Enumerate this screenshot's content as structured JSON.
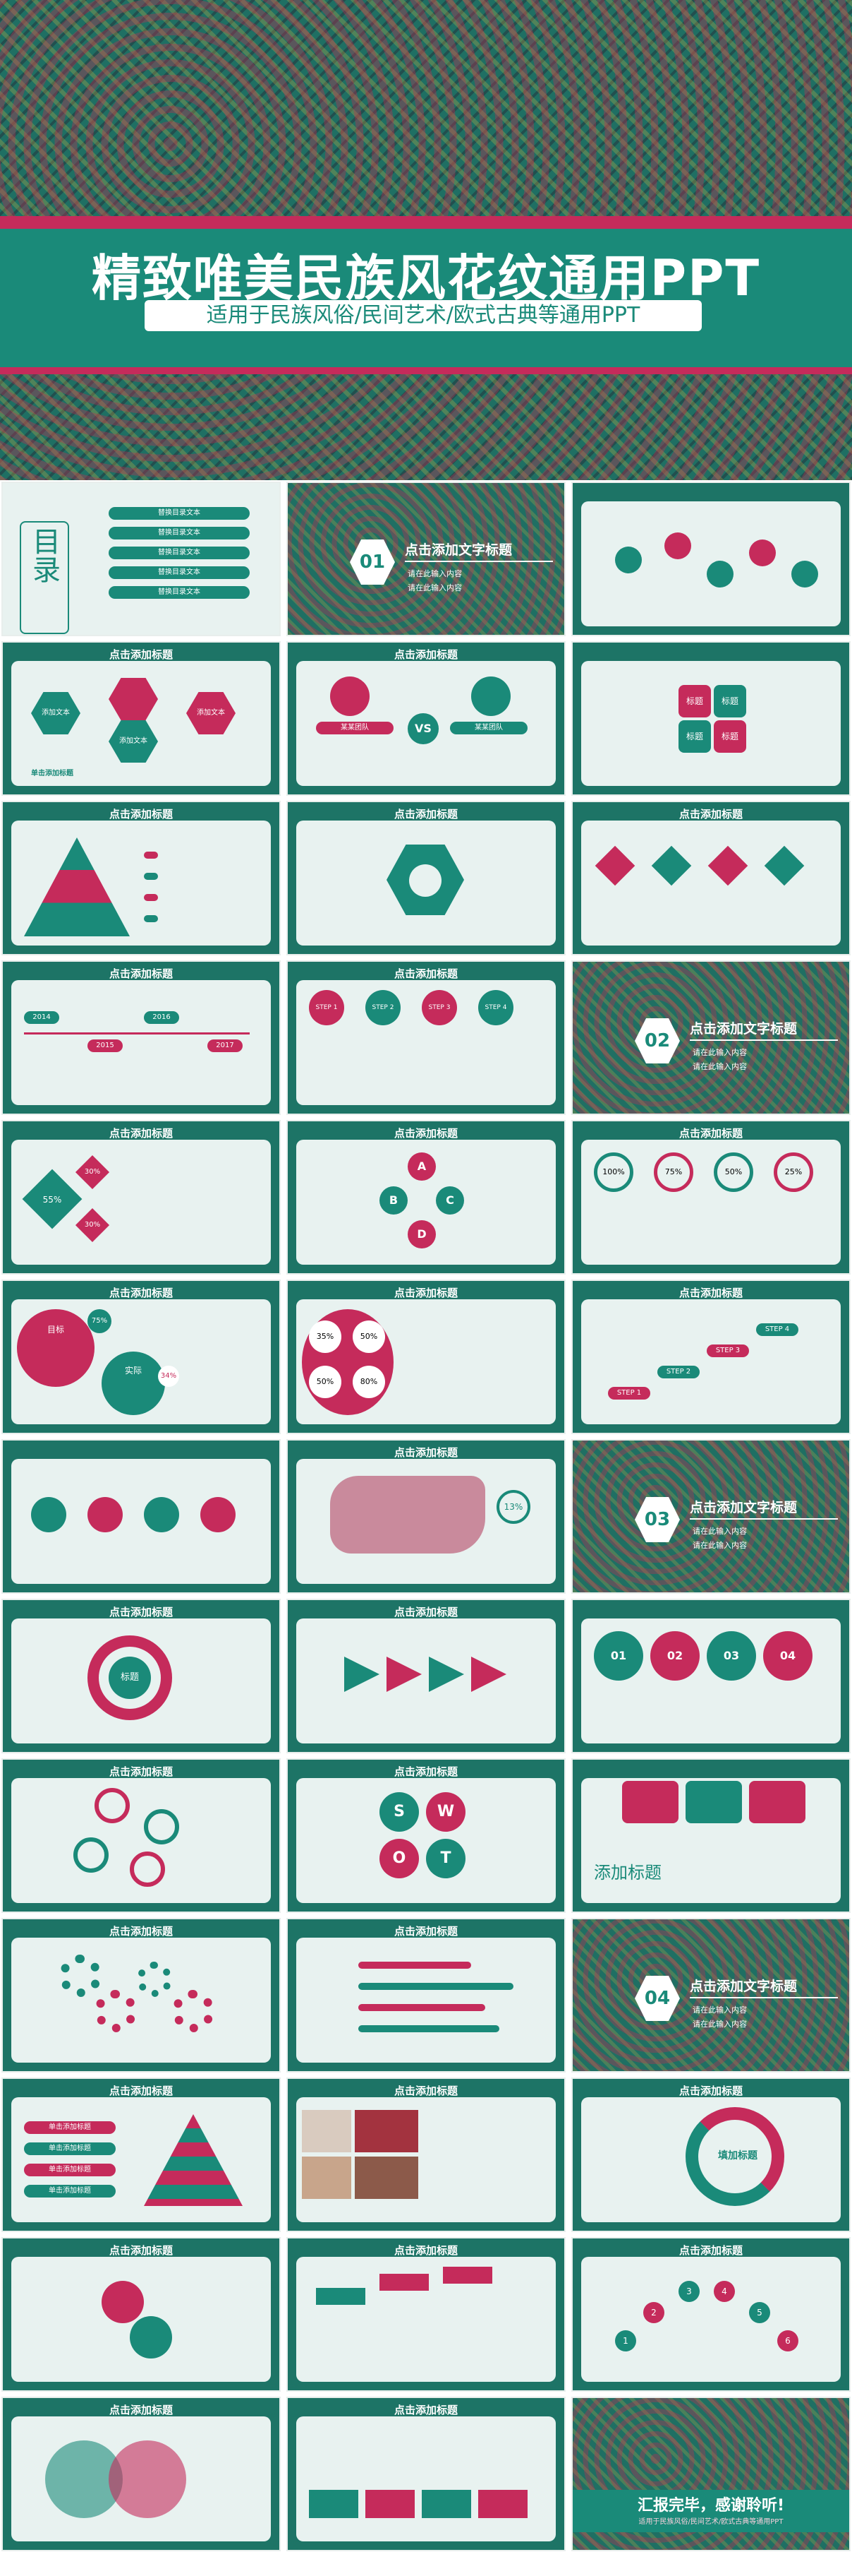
{
  "hero": {
    "title": "精致唯美民族风花纹通用PPT",
    "subtitle": "适用于民族风俗/民间艺术/欧式古典等通用PPT"
  },
  "toc": {
    "heading": "目录",
    "items": [
      "替换目录文本",
      "替换目录文本",
      "替换目录文本",
      "替换目录文本",
      "替换目录文本"
    ]
  },
  "common": {
    "click_title": "点击添加标题",
    "section_title": "点击添加文字标题",
    "input": "请在此输入内容",
    "input2": "请在此输入内容",
    "add_text": "添加文本",
    "single_title": "单击添加标题",
    "step": [
      "STEP 1",
      "STEP 2",
      "STEP 3",
      "STEP 4"
    ]
  },
  "section_nums": [
    "01",
    "02",
    "03",
    "04"
  ],
  "vs": {
    "left": "某某团队",
    "right": "某某团队",
    "mid": "VS"
  },
  "labels": {
    "tag": "标题"
  },
  "timeline_years": [
    "2014",
    "2015",
    "2016",
    "2017"
  ],
  "abcd": [
    "A",
    "B",
    "C",
    "D"
  ],
  "pcts": [
    "100%",
    "75%",
    "50%",
    "25%"
  ],
  "pcts_ring": [
    "35%",
    "50%",
    "50%",
    "80%"
  ],
  "diamond_pcts": [
    "55%",
    "30%",
    "30%"
  ],
  "small_pct": [
    "75%",
    "34%"
  ],
  "labels_misc": {
    "goal": "目标",
    "fact": "实际",
    "map_pct": "13%",
    "center": "标题"
  },
  "nums4": [
    "01",
    "02",
    "03",
    "04"
  ],
  "swot": [
    "S",
    "W",
    "O",
    "T"
  ],
  "add_heading": "添加标题",
  "fill_title": "填加标题",
  "numbers6": [
    "1",
    "2",
    "3",
    "4",
    "5",
    "6"
  ],
  "end": {
    "title": "汇报完毕，感谢聆听!",
    "sub": "适用于民族风俗/民间艺术/欧式古典等通用PPT"
  }
}
